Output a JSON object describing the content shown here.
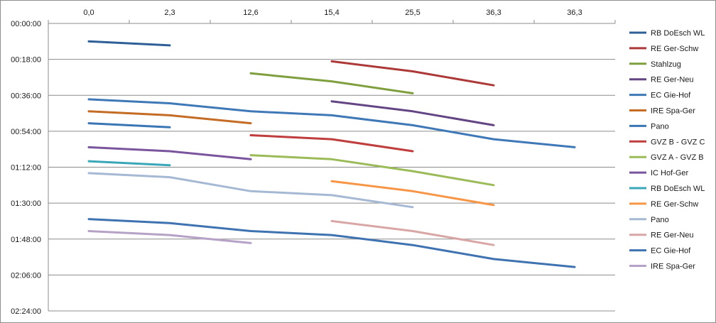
{
  "chart_data": {
    "type": "line",
    "x_categories": [
      "0,0",
      "2,3",
      "12,6",
      "15,4",
      "25,5",
      "36,3",
      "36,3"
    ],
    "y_ticks": [
      "00:00:00",
      "00:18:00",
      "00:36:00",
      "00:54:00",
      "01:12:00",
      "01:30:00",
      "01:48:00",
      "02:06:00",
      "02:24:00"
    ],
    "y_range_minutes": [
      0,
      144
    ],
    "y_axis_reversed": true,
    "grid": "horizontal",
    "legend_position": "right",
    "series": [
      {
        "name": "RB DoEsch WL",
        "color": "#2e5f97",
        "values": [
          9,
          11,
          null,
          null,
          null,
          null,
          null
        ]
      },
      {
        "name": "RE Ger-Schw",
        "color": "#ad3838",
        "values": [
          null,
          null,
          null,
          19,
          24,
          31,
          null
        ]
      },
      {
        "name": "Stahlzug",
        "color": "#7f9f3f",
        "values": [
          null,
          null,
          25,
          29,
          35,
          null,
          null
        ]
      },
      {
        "name": "RE Ger-Neu",
        "color": "#634584",
        "values": [
          null,
          null,
          null,
          39,
          44,
          51,
          null
        ]
      },
      {
        "name": "EC Gie-Hof",
        "color": "#3f78b6",
        "values": [
          38,
          40,
          44,
          46,
          51,
          58,
          62
        ]
      },
      {
        "name": "IRE Spa-Ger",
        "color": "#c46b24",
        "values": [
          44,
          46,
          50,
          null,
          null,
          null,
          null
        ]
      },
      {
        "name": "Pano",
        "color": "#3a75b4",
        "values": [
          50,
          52,
          null,
          null,
          null,
          null,
          null
        ]
      },
      {
        "name": "GVZ B - GVZ C",
        "color": "#bf3d3d",
        "values": [
          null,
          null,
          56,
          58,
          64,
          null,
          null
        ]
      },
      {
        "name": "GVZ A - GVZ B",
        "color": "#9bbb59",
        "values": [
          null,
          null,
          66,
          68,
          74,
          81,
          null
        ]
      },
      {
        "name": "IC Hof-Ger",
        "color": "#7a559e",
        "values": [
          62,
          64,
          68,
          null,
          null,
          null,
          null
        ]
      },
      {
        "name": "RB DoEsch WL",
        "color": "#3aa7b8",
        "values": [
          69,
          71,
          null,
          null,
          null,
          null,
          null
        ]
      },
      {
        "name": "RE Ger-Schw",
        "color": "#f79646",
        "values": [
          null,
          null,
          null,
          79,
          84,
          91,
          null
        ]
      },
      {
        "name": "Pano",
        "color": "#a5b9d4",
        "values": [
          75,
          77,
          84,
          86,
          92,
          null,
          null
        ]
      },
      {
        "name": "RE Ger-Neu",
        "color": "#d9a6a6",
        "values": [
          null,
          null,
          null,
          99,
          104,
          111,
          null
        ]
      },
      {
        "name": "EC Gie-Hof",
        "color": "#3e72b0",
        "values": [
          98,
          100,
          104,
          106,
          111,
          118,
          122
        ]
      },
      {
        "name": "IRE Spa-Ger",
        "color": "#b6a2c6",
        "values": [
          104,
          106,
          110,
          null,
          null,
          null,
          null
        ]
      }
    ]
  }
}
